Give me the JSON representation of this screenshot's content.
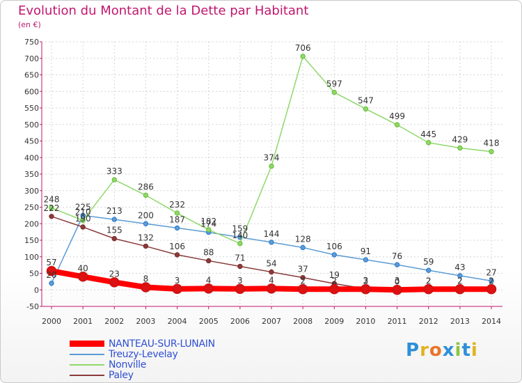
{
  "header": {
    "title": "Evolution du Montant de la Dette par Habitant",
    "subtitle": "(en €)"
  },
  "colors": {
    "title": "#c0176f",
    "axis": "#c0176f",
    "grid": "#d4d4d4",
    "labels": "#333333",
    "legend_text": "#2f4fd1"
  },
  "logo": {
    "letters": [
      "P",
      "r",
      "o",
      "x",
      "i",
      "t",
      "i"
    ],
    "colors": [
      "#2f8fd8",
      "#e2b21e",
      "#e8752a",
      "#2f8fd8",
      "#8cc63f",
      "#2f8fd8",
      "#e2b21e"
    ]
  },
  "chart_data": {
    "type": "line",
    "title": "Evolution du Montant de la Dette par Habitant",
    "subtitle": "(en €)",
    "x": [
      "2000",
      "2001",
      "2002",
      "2003",
      "2004",
      "2005",
      "2006",
      "2007",
      "2008",
      "2009",
      "2010",
      "2011",
      "2012",
      "2013",
      "2014"
    ],
    "ylim": [
      -50,
      750
    ],
    "yticks": [
      -50,
      0,
      50,
      100,
      150,
      200,
      250,
      300,
      350,
      400,
      450,
      500,
      550,
      600,
      650,
      700,
      750
    ],
    "grid": true,
    "legend_position": "bottom-left",
    "series": [
      {
        "name": "NANTEAU-SUR-LUNAIN",
        "color": "#ff0000",
        "marker": "#cc1111",
        "emphasis": true,
        "values": [
          57,
          40,
          23,
          8,
          3,
          4,
          3,
          4,
          2,
          2,
          2,
          0,
          2,
          2,
          2
        ],
        "labels": [
          "57",
          "40",
          "23",
          "8",
          "3",
          "4",
          "3",
          "4",
          "2",
          "2",
          "2",
          "0",
          "2",
          "2",
          "2"
        ]
      },
      {
        "name": "Treuzy-Levelay",
        "color": "#5b9bd5",
        "marker": "#2e78c8",
        "values": [
          20,
          225,
          213,
          200,
          187,
          174,
          159,
          144,
          128,
          106,
          91,
          76,
          59,
          43,
          27
        ],
        "labels": [
          "20",
          "225",
          "213",
          "200",
          "187",
          "174",
          "159",
          "144",
          "128",
          "106",
          "91",
          "76",
          "59",
          "43",
          "27"
        ]
      },
      {
        "name": "Nonville",
        "color": "#8fd86a",
        "marker": "#66bb33",
        "values": [
          248,
          210,
          333,
          286,
          232,
          182,
          140,
          374,
          706,
          597,
          547,
          499,
          445,
          429,
          418
        ],
        "labels": [
          "248",
          "210",
          "333",
          "286",
          "232",
          "182",
          "140",
          "374",
          "706",
          "597",
          "547",
          "499",
          "445",
          "429",
          "418"
        ]
      },
      {
        "name": "Paley",
        "color": "#8a3a3a",
        "marker": "#7a2a2a",
        "values": [
          222,
          190,
          155,
          132,
          106,
          88,
          71,
          54,
          37,
          19,
          3,
          3,
          2,
          2,
          2
        ],
        "labels": [
          "222",
          "190",
          "155",
          "132",
          "106",
          "88",
          "71",
          "54",
          "37",
          "19",
          "3",
          "3",
          "2",
          "2",
          "2"
        ]
      }
    ]
  }
}
